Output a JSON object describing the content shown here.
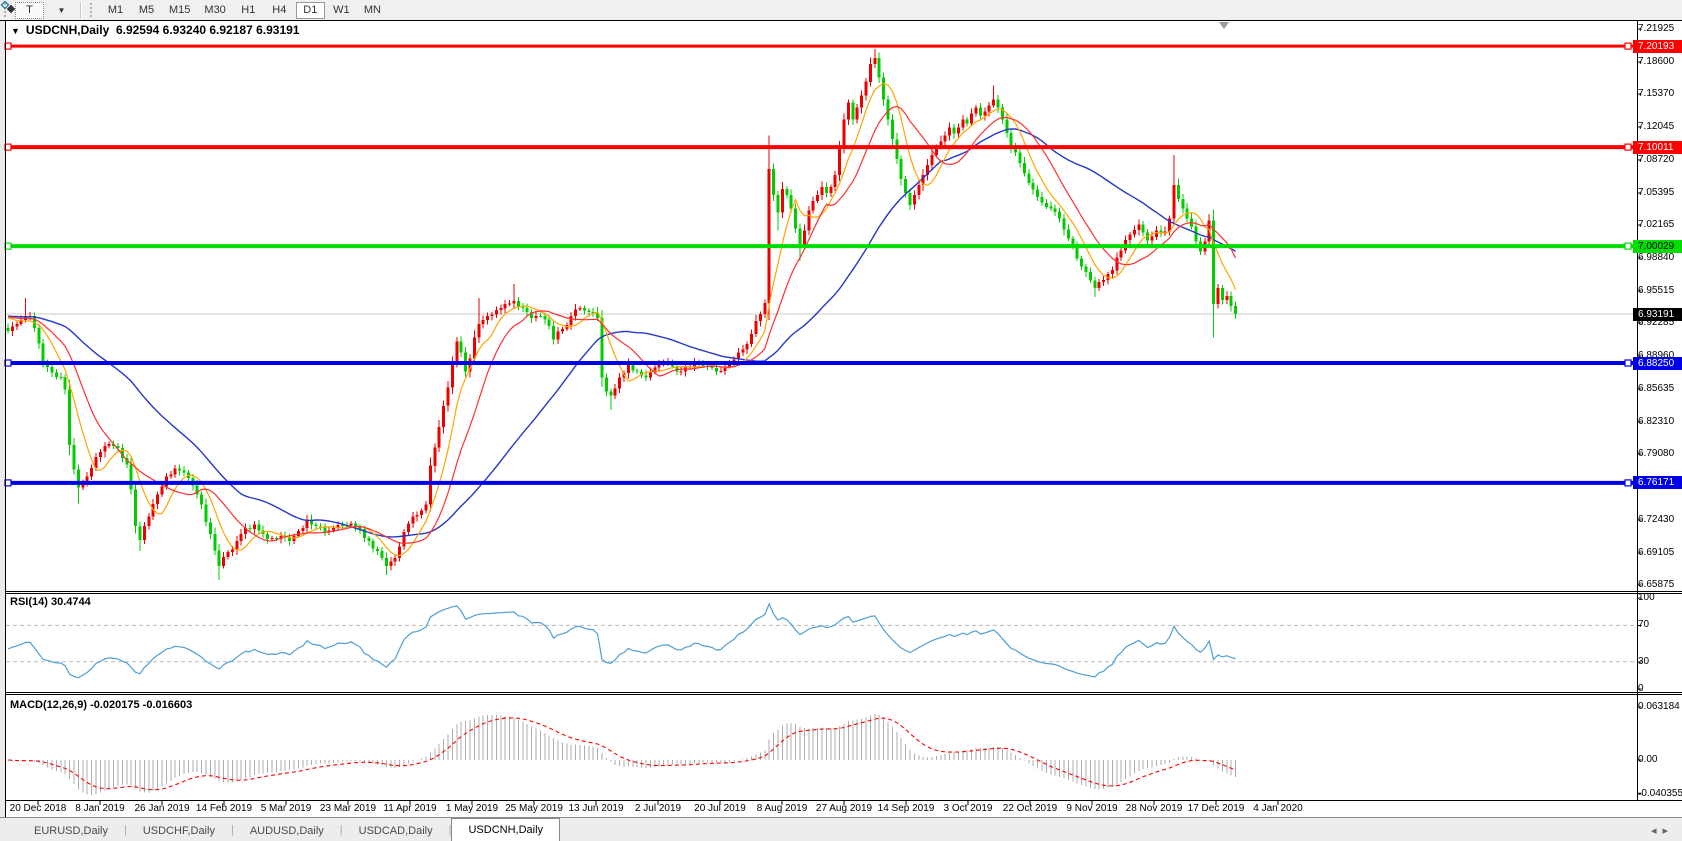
{
  "toolbar": {
    "text_tool_label": "T",
    "timeframes": [
      "M1",
      "M5",
      "M15",
      "M30",
      "H1",
      "H4",
      "D1",
      "W1",
      "MN"
    ],
    "active_timeframe": "D1"
  },
  "chart": {
    "title_symbol": "USDCNH,Daily",
    "title_quotes": "6.92594 6.93240 6.92187 6.93191"
  },
  "price_axis": {
    "labels": [
      7.21925,
      7.186,
      7.1537,
      7.12045,
      7.0872,
      7.05395,
      7.02165,
      6.9884,
      6.95515,
      6.92285,
      6.8896,
      6.85635,
      6.8231,
      6.7908,
      6.75755,
      6.7243,
      6.69105,
      6.65875
    ],
    "badges": [
      {
        "value": 7.20193,
        "bg": "#FF0000",
        "fg": "#FFFFFF",
        "name": "resistance-1"
      },
      {
        "value": 7.10011,
        "bg": "#FF0000",
        "fg": "#FFFFFF",
        "name": "resistance-2"
      },
      {
        "value": 7.00029,
        "bg": "#00DD00",
        "fg": "#000000",
        "name": "pivot-green"
      },
      {
        "value": 6.93191,
        "bg": "#000000",
        "fg": "#FFFFFF",
        "name": "current-price"
      },
      {
        "value": 6.8825,
        "bg": "#0000E8",
        "fg": "#FFFFFF",
        "name": "support-1"
      },
      {
        "value": 6.76171,
        "bg": "#0000E8",
        "fg": "#FFFFFF",
        "name": "support-2"
      }
    ]
  },
  "rsi": {
    "label": "RSI(14) 30.4744",
    "current": 30.4744,
    "axis_labels": [
      100,
      70,
      30,
      0
    ],
    "dashed_levels": [
      70,
      30
    ],
    "color": "#4E9FD8"
  },
  "macd": {
    "label": "MACD(12,26,9) -0.020175 -0.016603",
    "main": -0.020175,
    "signal": -0.016603,
    "axis_labels": [
      "0.063184",
      "0.00",
      "-0.040355"
    ]
  },
  "dates": [
    "20 Dec 2018",
    "8 Jan 2019",
    "26 Jan 2019",
    "14 Feb 2019",
    "5 Mar 2019",
    "23 Mar 2019",
    "11 Apr 2019",
    "1 May 2019",
    "25 May 2019",
    "13 Jun 2019",
    "2 Jul 2019",
    "20 Jul 2019",
    "8 Aug 2019",
    "27 Aug 2019",
    "14 Sep 2019",
    "3 Oct 2019",
    "22 Oct 2019",
    "9 Nov 2019",
    "28 Nov 2019",
    "17 Dec 2019",
    "4 Jan 2020"
  ],
  "tabs": {
    "items": [
      "EURUSD,Daily",
      "USDCHF,Daily",
      "AUDUSD,Daily",
      "USDCAD,Daily",
      "USDCNH,Daily"
    ],
    "active": "USDCNH,Daily"
  },
  "colors": {
    "candle_up": "#EE0000",
    "candle_down": "#00CC00",
    "line_red": "#FF0000",
    "line_green": "#00DD00",
    "line_blue": "#0000E8",
    "ma_fast": "#FFA500",
    "ma_mid": "#FF3030",
    "ma_slow": "#2438C8",
    "macd_bar": "#ADADAD",
    "macd_signal": "#FF0000",
    "current_line": "#C8C8C8"
  },
  "chart_data": {
    "type": "candlestick",
    "symbol": "USDCNH",
    "period": "Daily",
    "n_candles": 280,
    "ylim": [
      6.65,
      7.225
    ],
    "x_range": [
      "20 Dec 2018",
      "14 Jan 2020"
    ],
    "horizontal_lines": [
      {
        "price": 7.20193,
        "color": "#FF0000",
        "width": 3
      },
      {
        "price": 7.10011,
        "color": "#FF0000",
        "width": 4
      },
      {
        "price": 7.00029,
        "color": "#00DD00",
        "width": 4
      },
      {
        "price": 6.8825,
        "color": "#0000E8",
        "width": 4
      },
      {
        "price": 6.76171,
        "color": "#0000E8",
        "width": 4
      }
    ],
    "current_price": 6.93191,
    "moving_averages": [
      {
        "period": 7,
        "color": "#FFA500",
        "name": "ma-fast-orange"
      },
      {
        "period": 14,
        "color": "#FF3030",
        "name": "ma-mid-red"
      },
      {
        "period": 40,
        "color": "#2438C8",
        "name": "ma-slow-blue"
      }
    ],
    "indicators": [
      {
        "type": "RSI",
        "period": 14,
        "current": 30.4744,
        "levels": [
          70,
          30
        ],
        "range": [
          0,
          100
        ]
      },
      {
        "type": "MACD",
        "fast": 12,
        "slow": 26,
        "signal": 9,
        "main_current": -0.020175,
        "signal_current": -0.016603,
        "axis_max": 0.063184,
        "axis_min": -0.040355
      }
    ],
    "price_keypoints": [
      [
        0,
        6.915
      ],
      [
        2,
        6.922
      ],
      [
        4,
        6.93,
        6.948,
        null
      ],
      [
        5,
        6.93
      ],
      [
        6,
        6.918
      ],
      [
        8,
        6.882
      ],
      [
        10,
        6.873
      ],
      [
        12,
        6.868
      ],
      [
        13,
        6.856
      ],
      [
        14,
        6.8
      ],
      [
        15,
        6.775
      ],
      [
        16,
        6.757,
        null,
        6.741
      ],
      [
        18,
        6.768
      ],
      [
        20,
        6.788
      ],
      [
        23,
        6.801
      ],
      [
        25,
        6.797
      ],
      [
        27,
        6.78
      ],
      [
        28,
        6.755
      ],
      [
        29,
        6.718
      ],
      [
        30,
        6.704,
        null,
        6.693
      ],
      [
        32,
        6.728
      ],
      [
        34,
        6.75
      ],
      [
        36,
        6.768
      ],
      [
        38,
        6.776
      ],
      [
        40,
        6.772
      ],
      [
        42,
        6.759
      ],
      [
        44,
        6.74
      ],
      [
        46,
        6.71
      ],
      [
        48,
        6.678,
        null,
        6.664
      ],
      [
        50,
        6.692
      ],
      [
        52,
        6.703
      ],
      [
        54,
        6.716
      ],
      [
        56,
        6.72
      ],
      [
        58,
        6.71
      ],
      [
        60,
        6.706
      ],
      [
        62,
        6.708
      ],
      [
        64,
        6.703
      ],
      [
        66,
        6.713
      ],
      [
        68,
        6.725
      ],
      [
        70,
        6.718
      ],
      [
        72,
        6.712
      ],
      [
        74,
        6.716
      ],
      [
        76,
        6.719
      ],
      [
        78,
        6.721
      ],
      [
        80,
        6.715
      ],
      [
        82,
        6.703
      ],
      [
        84,
        6.693
      ],
      [
        86,
        6.678,
        null,
        6.669
      ],
      [
        88,
        6.686
      ],
      [
        90,
        6.712
      ],
      [
        92,
        6.728
      ],
      [
        94,
        6.734
      ],
      [
        95,
        6.74
      ],
      [
        96,
        6.779
      ],
      [
        98,
        6.818
      ],
      [
        100,
        6.858
      ],
      [
        102,
        6.904
      ],
      [
        103,
        6.893
      ],
      [
        104,
        6.874
      ],
      [
        105,
        6.887
      ],
      [
        106,
        6.908
      ],
      [
        107,
        6.922,
        6.948,
        null
      ],
      [
        109,
        6.93
      ],
      [
        111,
        6.936
      ],
      [
        113,
        6.942
      ],
      [
        115,
        6.945,
        6.962,
        null
      ],
      [
        117,
        6.938
      ],
      [
        119,
        6.928
      ],
      [
        121,
        6.93
      ],
      [
        123,
        6.92
      ],
      [
        124,
        6.906
      ],
      [
        126,
        6.917
      ],
      [
        128,
        6.93
      ],
      [
        130,
        6.938
      ],
      [
        132,
        6.934
      ],
      [
        134,
        6.928
      ],
      [
        135,
        6.868
      ],
      [
        136,
        6.854
      ],
      [
        137,
        6.85,
        null,
        6.835
      ],
      [
        139,
        6.868
      ],
      [
        141,
        6.882
      ],
      [
        143,
        6.874
      ],
      [
        145,
        6.868
      ],
      [
        147,
        6.878
      ],
      [
        149,
        6.883
      ],
      [
        151,
        6.879
      ],
      [
        153,
        6.874
      ],
      [
        155,
        6.879
      ],
      [
        157,
        6.883
      ],
      [
        159,
        6.879
      ],
      [
        161,
        6.874
      ],
      [
        163,
        6.879
      ],
      [
        165,
        6.886
      ],
      [
        167,
        6.896
      ],
      [
        169,
        6.912
      ],
      [
        171,
        6.932
      ],
      [
        172,
        6.943
      ],
      [
        173,
        7.078,
        7.112,
        6.938
      ],
      [
        174,
        7.052
      ],
      [
        175,
        7.034,
        null,
        7.016
      ],
      [
        176,
        7.058
      ],
      [
        177,
        7.052
      ],
      [
        178,
        7.038
      ],
      [
        179,
        7.018
      ],
      [
        180,
        7.001,
        null,
        6.986
      ],
      [
        181,
        7.016
      ],
      [
        182,
        7.036
      ],
      [
        183,
        7.046
      ],
      [
        184,
        7.052
      ],
      [
        185,
        7.06
      ],
      [
        186,
        7.054
      ],
      [
        187,
        7.06
      ],
      [
        188,
        7.072
      ],
      [
        189,
        7.1
      ],
      [
        190,
        7.128
      ],
      [
        191,
        7.145
      ],
      [
        192,
        7.128
      ],
      [
        193,
        7.14
      ],
      [
        194,
        7.152
      ],
      [
        195,
        7.166
      ],
      [
        196,
        7.184
      ],
      [
        197,
        7.19,
        7.199,
        null
      ],
      [
        198,
        7.17
      ],
      [
        199,
        7.148
      ],
      [
        200,
        7.128
      ],
      [
        201,
        7.108
      ],
      [
        202,
        7.088
      ],
      [
        203,
        7.068
      ],
      [
        204,
        7.054
      ],
      [
        205,
        7.042
      ],
      [
        206,
        7.052
      ],
      [
        207,
        7.062
      ],
      [
        208,
        7.072
      ],
      [
        209,
        7.082
      ],
      [
        210,
        7.092
      ],
      [
        211,
        7.1
      ],
      [
        212,
        7.106
      ],
      [
        213,
        7.112
      ],
      [
        214,
        7.12
      ],
      [
        215,
        7.114
      ],
      [
        216,
        7.12
      ],
      [
        217,
        7.128
      ],
      [
        218,
        7.124
      ],
      [
        219,
        7.134
      ],
      [
        220,
        7.14
      ],
      [
        221,
        7.132
      ],
      [
        222,
        7.136
      ],
      [
        223,
        7.142
      ],
      [
        224,
        7.148,
        7.162,
        null
      ],
      [
        225,
        7.14
      ],
      [
        226,
        7.128
      ],
      [
        228,
        7.1
      ],
      [
        230,
        7.084
      ],
      [
        232,
        7.064
      ],
      [
        234,
        7.05
      ],
      [
        236,
        7.04
      ],
      [
        238,
        7.035
      ],
      [
        239,
        7.028
      ],
      [
        241,
        7.008
      ],
      [
        243,
        6.988
      ],
      [
        245,
        6.974
      ],
      [
        247,
        6.958,
        null,
        6.949
      ],
      [
        249,
        6.966
      ],
      [
        251,
        6.976
      ],
      [
        253,
        6.996
      ],
      [
        255,
        7.012
      ],
      [
        257,
        7.022
      ],
      [
        259,
        7.006
      ],
      [
        261,
        7.016
      ],
      [
        263,
        7.015
      ],
      [
        264,
        7.028
      ],
      [
        265,
        7.062,
        7.092,
        null
      ],
      [
        266,
        7.048
      ],
      [
        267,
        7.038
      ],
      [
        268,
        7.028
      ],
      [
        269,
        7.02
      ],
      [
        270,
        7.005
      ],
      [
        271,
        6.995
      ],
      [
        272,
        7.005
      ],
      [
        273,
        7.026
      ],
      [
        274,
        6.942,
        null,
        6.908
      ],
      [
        275,
        6.958
      ],
      [
        276,
        6.946
      ],
      [
        277,
        6.95
      ],
      [
        278,
        6.94
      ],
      [
        279,
        6.932
      ]
    ]
  }
}
